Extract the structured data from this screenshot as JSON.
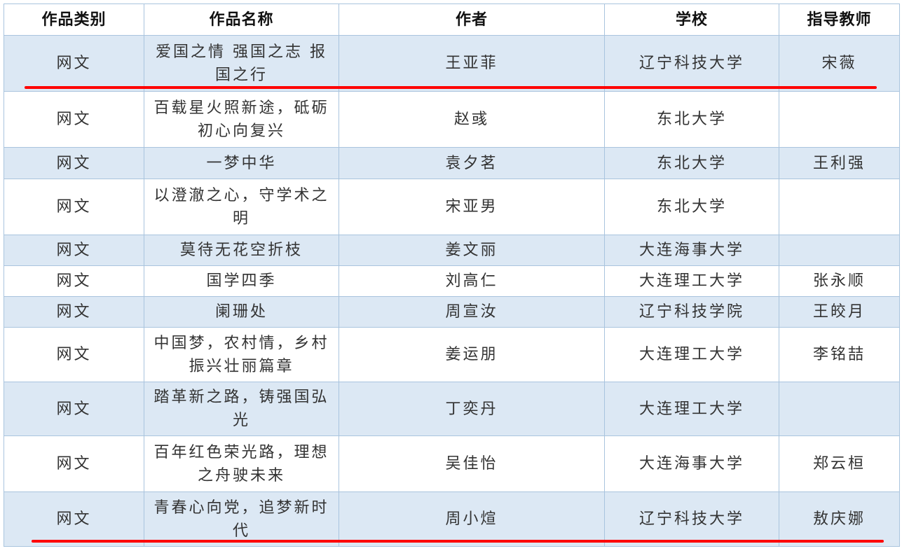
{
  "headers": [
    "作品类别",
    "作品名称",
    "作者",
    "学校",
    "指导教师"
  ],
  "rows": [
    [
      "网文",
      "爱国之情 强国之志 报国之行",
      "王亚菲",
      "辽宁科技大学",
      "宋薇"
    ],
    [
      "网文",
      "百载星火照新途，砥砺初心向复兴",
      "赵彧",
      "东北大学",
      ""
    ],
    [
      "网文",
      "一梦中华",
      "袁夕茗",
      "东北大学",
      "王利强"
    ],
    [
      "网文",
      "以澄澈之心，守学术之明",
      "宋亚男",
      "东北大学",
      ""
    ],
    [
      "网文",
      "莫待无花空折枝",
      "姜文丽",
      "大连海事大学",
      ""
    ],
    [
      "网文",
      "国学四季",
      "刘高仁",
      "大连理工大学",
      "张永顺"
    ],
    [
      "网文",
      "阑珊处",
      "周宣汝",
      "辽宁科技学院",
      "王皎月"
    ],
    [
      "网文",
      "中国梦，农村情，乡村振兴壮丽篇章",
      "姜运朋",
      "大连理工大学",
      "李铭喆"
    ],
    [
      "网文",
      "踏革新之路，铸强国弘光",
      "丁奕丹",
      "大连理工大学",
      ""
    ],
    [
      "网文",
      "百年红色荣光路，理想之舟驶未来",
      "吴佳怡",
      "大连海事大学",
      "郑云桓"
    ],
    [
      "网文",
      "青春心向党，追梦新时代",
      "周小煊",
      "辽宁科技大学",
      "敖庆娜"
    ]
  ],
  "colors": {
    "row_shade": "#dce8f4",
    "border": "#a9c4de",
    "highlight_underline": "#ff0000"
  }
}
